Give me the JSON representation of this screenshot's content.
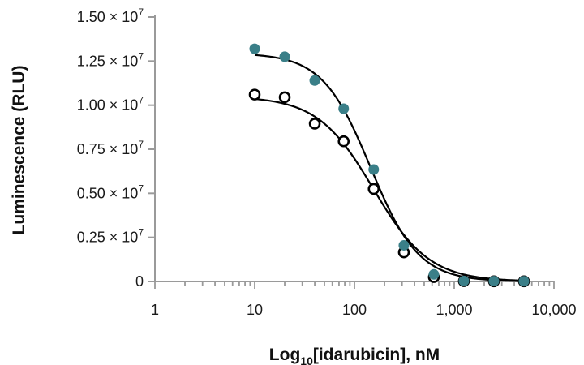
{
  "chart_data": {
    "type": "scatter",
    "xlabel": "Log10[idarubicin], nM",
    "xlabel_parts": {
      "pre": "Log",
      "sub": "10",
      "post": "[idarubicin], nM"
    },
    "ylabel": "Luminescence (RLU)",
    "x_scale": "log",
    "xlim": [
      1,
      10000
    ],
    "ylim": [
      0,
      15000000
    ],
    "x_ticks": [
      1,
      10,
      100,
      1000,
      10000
    ],
    "x_tick_labels": [
      "1",
      "10",
      "100",
      "1,000",
      "10,000"
    ],
    "y_ticks": [
      0,
      2500000,
      5000000,
      7500000,
      10000000,
      12500000,
      15000000
    ],
    "y_tick_labels": [
      {
        "mantissa": "0",
        "exp": ""
      },
      {
        "mantissa": "0.25 × 10",
        "exp": "7"
      },
      {
        "mantissa": "0.50 × 10",
        "exp": "7"
      },
      {
        "mantissa": "0.75 × 10",
        "exp": "7"
      },
      {
        "mantissa": "1.00 × 10",
        "exp": "7"
      },
      {
        "mantissa": "1.25 × 10",
        "exp": "7"
      },
      {
        "mantissa": "1.50 × 10",
        "exp": "7"
      }
    ],
    "grid": false,
    "legend": "none",
    "series": [
      {
        "marker": "filled",
        "color": "#3a7f88",
        "x": [
          10,
          20,
          40,
          78,
          156,
          313,
          625,
          1250,
          2500,
          5000
        ],
        "y": [
          13200000,
          12750000,
          11400000,
          9800000,
          6350000,
          2050000,
          400000,
          30000,
          20000,
          10000
        ],
        "fit": {
          "top": 12950000,
          "bottom": 0,
          "ec50": 145,
          "hill": 1.8
        }
      },
      {
        "marker": "open",
        "color": "#000000",
        "x": [
          10,
          20,
          40,
          78,
          156,
          313,
          625,
          1250,
          2500,
          5000
        ],
        "y": [
          10600000,
          10450000,
          8950000,
          7950000,
          5250000,
          1650000,
          250000,
          20000,
          10000,
          10000
        ],
        "fit": {
          "top": 10500000,
          "bottom": 0,
          "ec50": 155,
          "hill": 1.55
        }
      }
    ]
  }
}
